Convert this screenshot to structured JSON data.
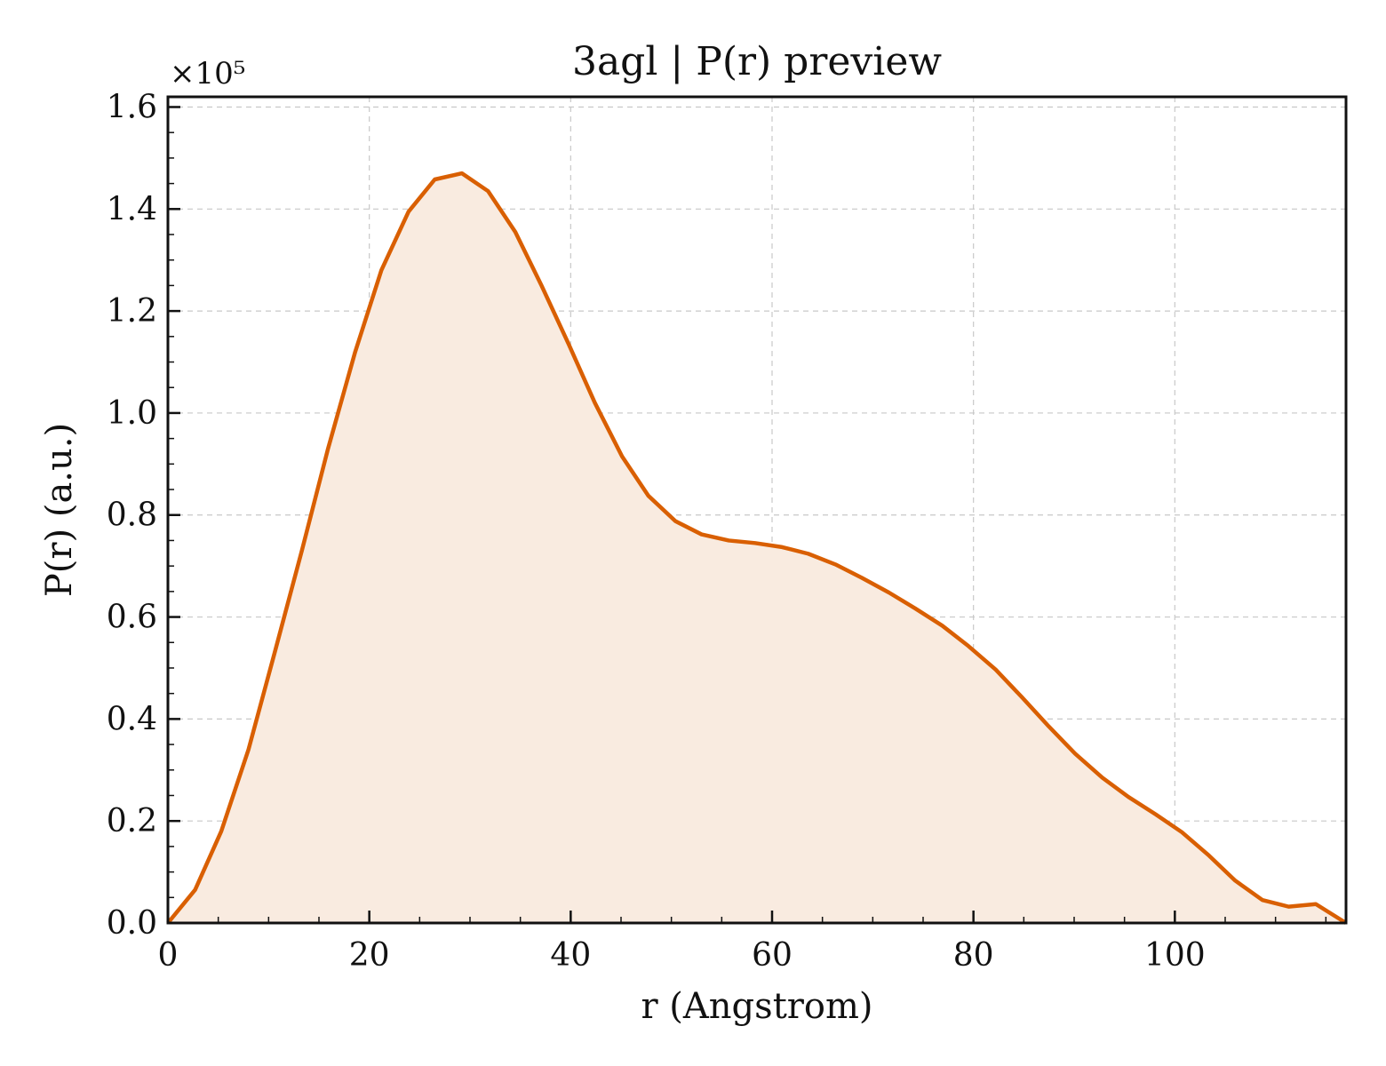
{
  "chart_data": {
    "type": "area",
    "title": "3agl | P(r) preview",
    "xlabel": "r (Angstrom)",
    "ylabel": "P(r) (a.u.)",
    "y_multiplier_label": "×10⁵",
    "xlim": [
      0,
      117
    ],
    "ylim": [
      0,
      1.62
    ],
    "xticks": [
      0,
      20,
      40,
      60,
      80,
      100
    ],
    "yticks": [
      0.0,
      0.2,
      0.4,
      0.6,
      0.8,
      1.0,
      1.2,
      1.4,
      1.6
    ],
    "ytick_labels": [
      "0.0",
      "0.2",
      "0.4",
      "0.6",
      "0.8",
      "1.0",
      "1.2",
      "1.4",
      "1.6"
    ],
    "grid": true,
    "line_color": "#d95f02",
    "fill_color": "#f9ebe0",
    "series": [
      {
        "x": [
          0,
          2.7,
          5.3,
          8.0,
          10.6,
          13.3,
          15.9,
          18.6,
          21.2,
          23.9,
          26.5,
          29.2,
          31.8,
          34.5,
          37.1,
          39.8,
          42.4,
          45.1,
          47.7,
          50.4,
          53.0,
          55.7,
          58.3,
          61.0,
          63.6,
          66.3,
          68.9,
          71.6,
          74.2,
          76.9,
          79.5,
          82.2,
          84.8,
          87.5,
          90.1,
          92.8,
          95.4,
          98.1,
          100.7,
          103.4,
          106.0,
          108.7,
          111.3,
          114.0,
          117.0
        ],
        "y": [
          0.0,
          0.065,
          0.18,
          0.34,
          0.53,
          0.73,
          0.93,
          1.12,
          1.28,
          1.395,
          1.458,
          1.47,
          1.435,
          1.355,
          1.25,
          1.135,
          1.02,
          0.915,
          0.838,
          0.788,
          0.762,
          0.75,
          0.745,
          0.737,
          0.724,
          0.703,
          0.677,
          0.648,
          0.617,
          0.583,
          0.543,
          0.497,
          0.443,
          0.385,
          0.332,
          0.285,
          0.247,
          0.213,
          0.178,
          0.132,
          0.083,
          0.045,
          0.032,
          0.037,
          0.0
        ]
      }
    ]
  }
}
